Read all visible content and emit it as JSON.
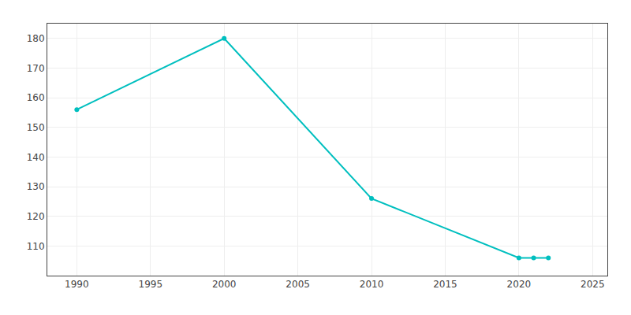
{
  "chart_data": {
    "type": "line",
    "x": [
      1990,
      2000,
      2010,
      2020,
      2021,
      2022
    ],
    "values": [
      156,
      180,
      126,
      106,
      106,
      106
    ],
    "color": "#00BFBF",
    "marker": "circle",
    "xlim": [
      1988,
      2026
    ],
    "ylim": [
      100,
      185
    ],
    "xticks": [
      1990,
      1995,
      2000,
      2005,
      2010,
      2015,
      2020,
      2025
    ],
    "yticks": [
      110,
      120,
      130,
      140,
      150,
      160,
      170,
      180
    ],
    "grid": true
  }
}
